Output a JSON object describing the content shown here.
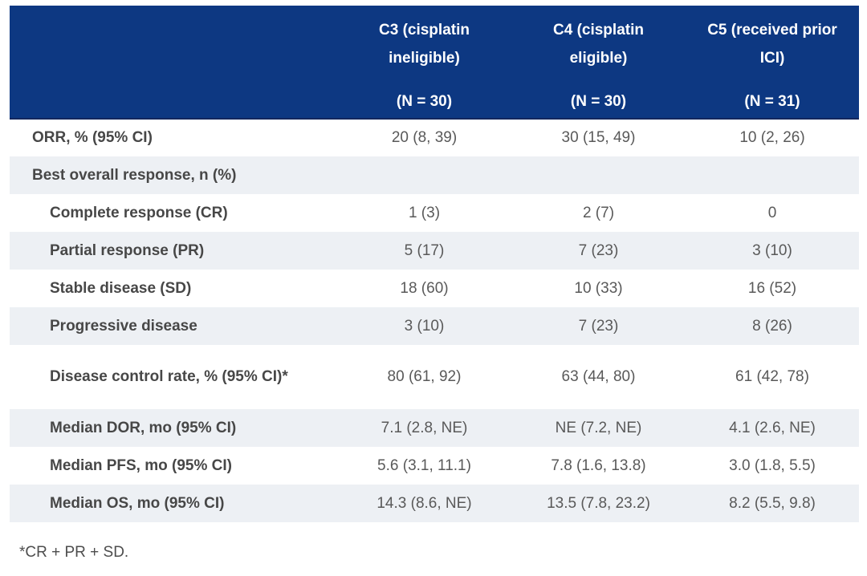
{
  "table": {
    "columns": [
      {
        "id": "c3",
        "title": "C3 (cisplatin ineligible)",
        "n": "(N = 30)"
      },
      {
        "id": "c4",
        "title": "C4 (cisplatin eligible)",
        "n": "(N = 30)"
      },
      {
        "id": "c5",
        "title": "C5 (received prior ICI)",
        "n": "(N = 31)"
      }
    ],
    "rows": [
      {
        "label": "ORR, % (95% CI)",
        "indent": 0,
        "tall": false,
        "values": [
          "20 (8, 39)",
          "30 (15, 49)",
          "10 (2, 26)"
        ]
      },
      {
        "label": "Best overall response, n (%)",
        "indent": 0,
        "tall": false,
        "values": [
          "",
          "",
          ""
        ]
      },
      {
        "label": "Complete response (CR)",
        "indent": 1,
        "tall": false,
        "values": [
          "1 (3)",
          "2 (7)",
          "0"
        ]
      },
      {
        "label": "Partial response (PR)",
        "indent": 1,
        "tall": false,
        "values": [
          "5 (17)",
          "7 (23)",
          "3 (10)"
        ]
      },
      {
        "label": "Stable disease (SD)",
        "indent": 1,
        "tall": false,
        "values": [
          "18 (60)",
          "10 (33)",
          "16 (52)"
        ]
      },
      {
        "label": "Progressive disease",
        "indent": 1,
        "tall": false,
        "values": [
          "3 (10)",
          "7 (23)",
          "8 (26)"
        ]
      },
      {
        "label": "Disease control rate, % (95% CI)*",
        "indent": 1,
        "tall": true,
        "values": [
          "80 (61, 92)",
          "63 (44, 80)",
          "61 (42, 78)"
        ]
      },
      {
        "label": "Median DOR, mo (95% CI)",
        "indent": 1,
        "tall": false,
        "values": [
          "7.1 (2.8, NE)",
          "NE (7.2, NE)",
          "4.1 (2.6, NE)"
        ]
      },
      {
        "label": "Median PFS, mo (95% CI)",
        "indent": 1,
        "tall": false,
        "values": [
          "5.6 (3.1, 11.1)",
          "7.8 (1.6, 13.8)",
          "3.0 (1.8, 5.5)"
        ]
      },
      {
        "label": "Median OS, mo (95% CI)",
        "indent": 1,
        "tall": false,
        "values": [
          "14.3 (8.6, NE)",
          "13.5 (7.8, 23.2)",
          "8.2 (5.5, 9.8)"
        ]
      }
    ]
  },
  "footnote": "*CR + PR + SD.",
  "colors": {
    "header_bg": "#0d3882",
    "header_border": "#13275e",
    "row_alt_bg": "#edf0f4",
    "header_text": "#ffffff",
    "label_text": "#474747",
    "value_text": "#595959",
    "footnote_text": "#4d4d4d"
  }
}
